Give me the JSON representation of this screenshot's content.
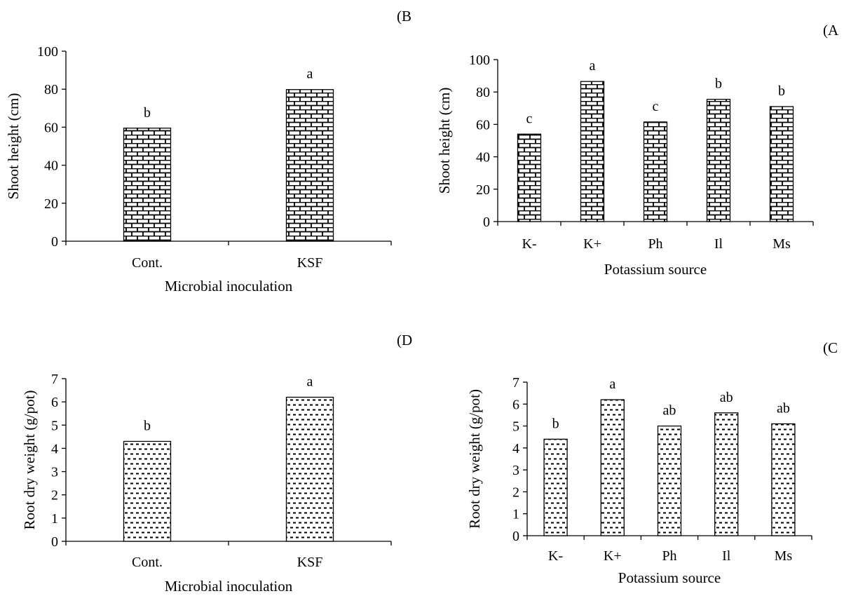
{
  "chart_data": [
    {
      "type": "bar",
      "panel_label": "(B",
      "categories": [
        "Cont.",
        "KSF"
      ],
      "values": [
        59.5,
        79.8
      ],
      "significance": [
        "b",
        "a"
      ],
      "xlabel": "Microbial inoculation",
      "ylabel": "Shoot height (cm)",
      "ylim": [
        0,
        100
      ],
      "yticks": [
        0,
        20,
        40,
        60,
        80,
        100
      ],
      "pattern": "brick",
      "grid": false
    },
    {
      "type": "bar",
      "panel_label": "(A",
      "categories": [
        "K-",
        "K+",
        "Ph",
        "Il",
        "Ms"
      ],
      "values": [
        54,
        86.5,
        61.5,
        75.5,
        71
      ],
      "significance": [
        "c",
        "a",
        "c",
        "b",
        "b"
      ],
      "xlabel": "Potassium source",
      "ylabel": "Shoot height (cm)",
      "ylim": [
        0,
        100
      ],
      "yticks": [
        0,
        20,
        40,
        60,
        80,
        100
      ],
      "pattern": "brick",
      "grid": false
    },
    {
      "type": "bar",
      "panel_label": "(D",
      "categories": [
        "Cont.",
        "KSF"
      ],
      "values": [
        4.3,
        6.2
      ],
      "significance": [
        "b",
        "a"
      ],
      "xlabel": "Microbial inoculation",
      "ylabel": "Root dry weight (g/pot)",
      "ylim": [
        0,
        7
      ],
      "yticks": [
        0,
        1,
        2,
        3,
        4,
        5,
        6,
        7
      ],
      "pattern": "dashes",
      "grid": false
    },
    {
      "type": "bar",
      "panel_label": "(C",
      "categories": [
        "K-",
        "K+",
        "Ph",
        "Il",
        "Ms"
      ],
      "values": [
        4.4,
        6.2,
        5.0,
        5.6,
        5.1
      ],
      "significance": [
        "b",
        "a",
        "ab",
        "ab",
        "ab"
      ],
      "xlabel": "Potassium source",
      "ylabel": "Root dry weight (g/pot)",
      "ylim": [
        0,
        7
      ],
      "yticks": [
        0,
        1,
        2,
        3,
        4,
        5,
        6,
        7
      ],
      "pattern": "dashes",
      "grid": false
    }
  ]
}
